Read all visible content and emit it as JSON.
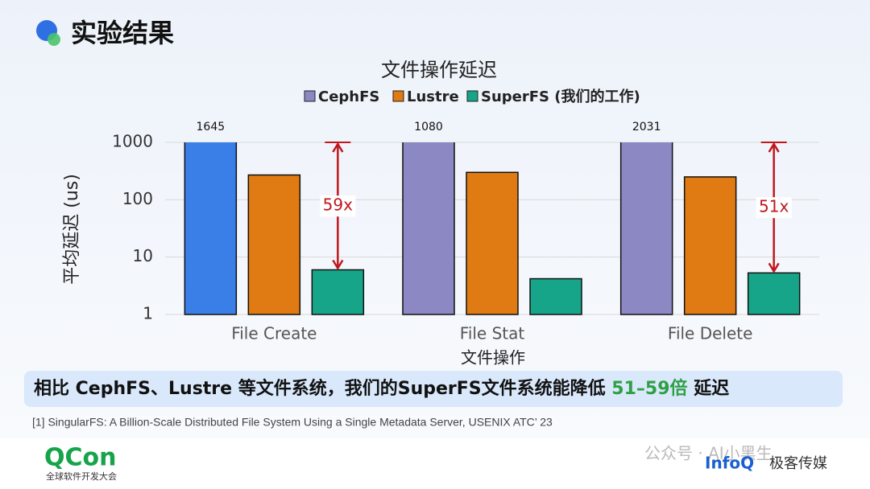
{
  "header": {
    "title": "实验结果"
  },
  "chart_data": {
    "type": "bar",
    "title": "文件操作延迟",
    "x_label": "文件操作",
    "y_label": "平均延迟 (us)",
    "categories": [
      "File Create",
      "File Stat",
      "File Delete"
    ],
    "series": [
      {
        "name": "CephFS",
        "color": "#8c88c4",
        "colors": [
          "#3a7ee8",
          "#8c88c4",
          "#8c88c4"
        ],
        "values": [
          1645,
          1080,
          2031
        ],
        "show_value_labels": true
      },
      {
        "name": "Lustre",
        "color": "#e07a12",
        "values": [
          270,
          300,
          250
        ]
      },
      {
        "name": "SuperFS (我们的工作)",
        "color": "#17a589",
        "values": [
          6,
          4.2,
          5.3
        ]
      }
    ],
    "log_scale": true,
    "ylim": [
      1,
      1000
    ],
    "yticks": [
      1,
      10,
      100,
      1000
    ],
    "grid": true,
    "legend": "top",
    "annotations": [
      {
        "text": "59x",
        "category": 0
      },
      {
        "text": "51x",
        "category": 2
      }
    ],
    "annotation_color": "#c0171d"
  },
  "banner": {
    "parts": [
      {
        "text": "相比 CephFS、Lustre 等文件系统，我们的SuperFS文件系统能降低 ",
        "color": "#111111"
      },
      {
        "text": "51–59倍",
        "color": "#2ea043"
      },
      {
        "text": " 延迟",
        "color": "#111111"
      }
    ]
  },
  "footnote": "[1] SingularFS: A Billion-Scale Distributed File System Using a Single Metadata Server, USENIX ATC’ 23",
  "footer": {
    "logo": "QCon",
    "logo_sub": "全球软件开发大会",
    "watermark": "公众号 · AI小黑生",
    "brand": "InfoQ",
    "brand_sub": "极客传媒"
  }
}
